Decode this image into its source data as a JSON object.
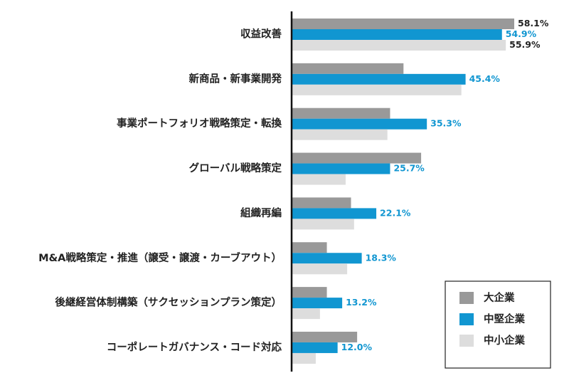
{
  "chart_data": {
    "type": "bar",
    "orientation": "horizontal",
    "categories": [
      "収益改善",
      "新商品・新事業開発",
      "事業ポートフォリオ戦略策定・転換",
      "グローバル戦略策定",
      "組織再編",
      "M&A戦略策定・推進（譲受・譲渡・カーブアウト）",
      "後継経営体制構築（サクセッションプラン策定）",
      "コーポレートガバナンス・コード対応"
    ],
    "series": [
      {
        "name": "大企業",
        "color": "#999999",
        "values": [
          58.1,
          29.2,
          25.7,
          33.8,
          15.5,
          9.2,
          9.2,
          17.1
        ]
      },
      {
        "name": "中堅企業",
        "color": "#1196d1",
        "values": [
          54.9,
          45.4,
          35.3,
          25.7,
          22.1,
          18.3,
          13.2,
          12.0
        ]
      },
      {
        "name": "中小企業",
        "color": "#dddddd",
        "values": [
          55.9,
          44.3,
          25.0,
          14.1,
          16.3,
          14.5,
          7.4,
          6.3
        ]
      }
    ],
    "value_labels": [
      [
        "58.1%",
        "54.9%",
        "55.9%"
      ],
      [
        null,
        "45.4%",
        null
      ],
      [
        null,
        "35.3%",
        null
      ],
      [
        null,
        "25.7%",
        null
      ],
      [
        null,
        "22.1%",
        null
      ],
      [
        null,
        "18.3%",
        null
      ],
      [
        null,
        "13.2%",
        null
      ],
      [
        null,
        "12.0%",
        null
      ]
    ],
    "value_label_colors": [
      "#222222",
      "#1196d1",
      "#222222"
    ],
    "xlim": [
      0,
      60
    ],
    "legend": {
      "position": "bottom-right",
      "entries": [
        "大企業",
        "中堅企業",
        "中小企業"
      ]
    },
    "grid": false,
    "axis_line_color": "#111111"
  }
}
